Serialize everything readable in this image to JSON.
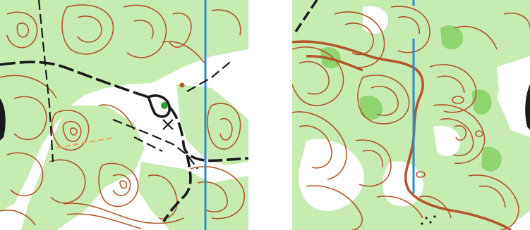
{
  "colors": {
    "background": "#ffffff",
    "vegetation_light": "#c6ecb1",
    "vegetation_medium": "#8fd46f",
    "contour": "#b4582b",
    "contour_index": "#b4582b",
    "track": "#1a1a1a",
    "magnetic_north_line": "#2b8ccc",
    "feature_green": "#2e9e3a",
    "feature_brown": "#b4582b",
    "light_path": "#f2a25a"
  },
  "maps": [
    {
      "id": "left",
      "symbols": [
        "magnetic-north-line",
        "contour-lines",
        "vegetation",
        "tracks",
        "dashed-paths",
        "control-cross",
        "green-dot",
        "brown-dot"
      ]
    },
    {
      "id": "right",
      "symbols": [
        "magnetic-north-line",
        "contour-lines",
        "index-contour",
        "vegetation",
        "dashed-path",
        "dot-knoll-group"
      ]
    }
  ]
}
